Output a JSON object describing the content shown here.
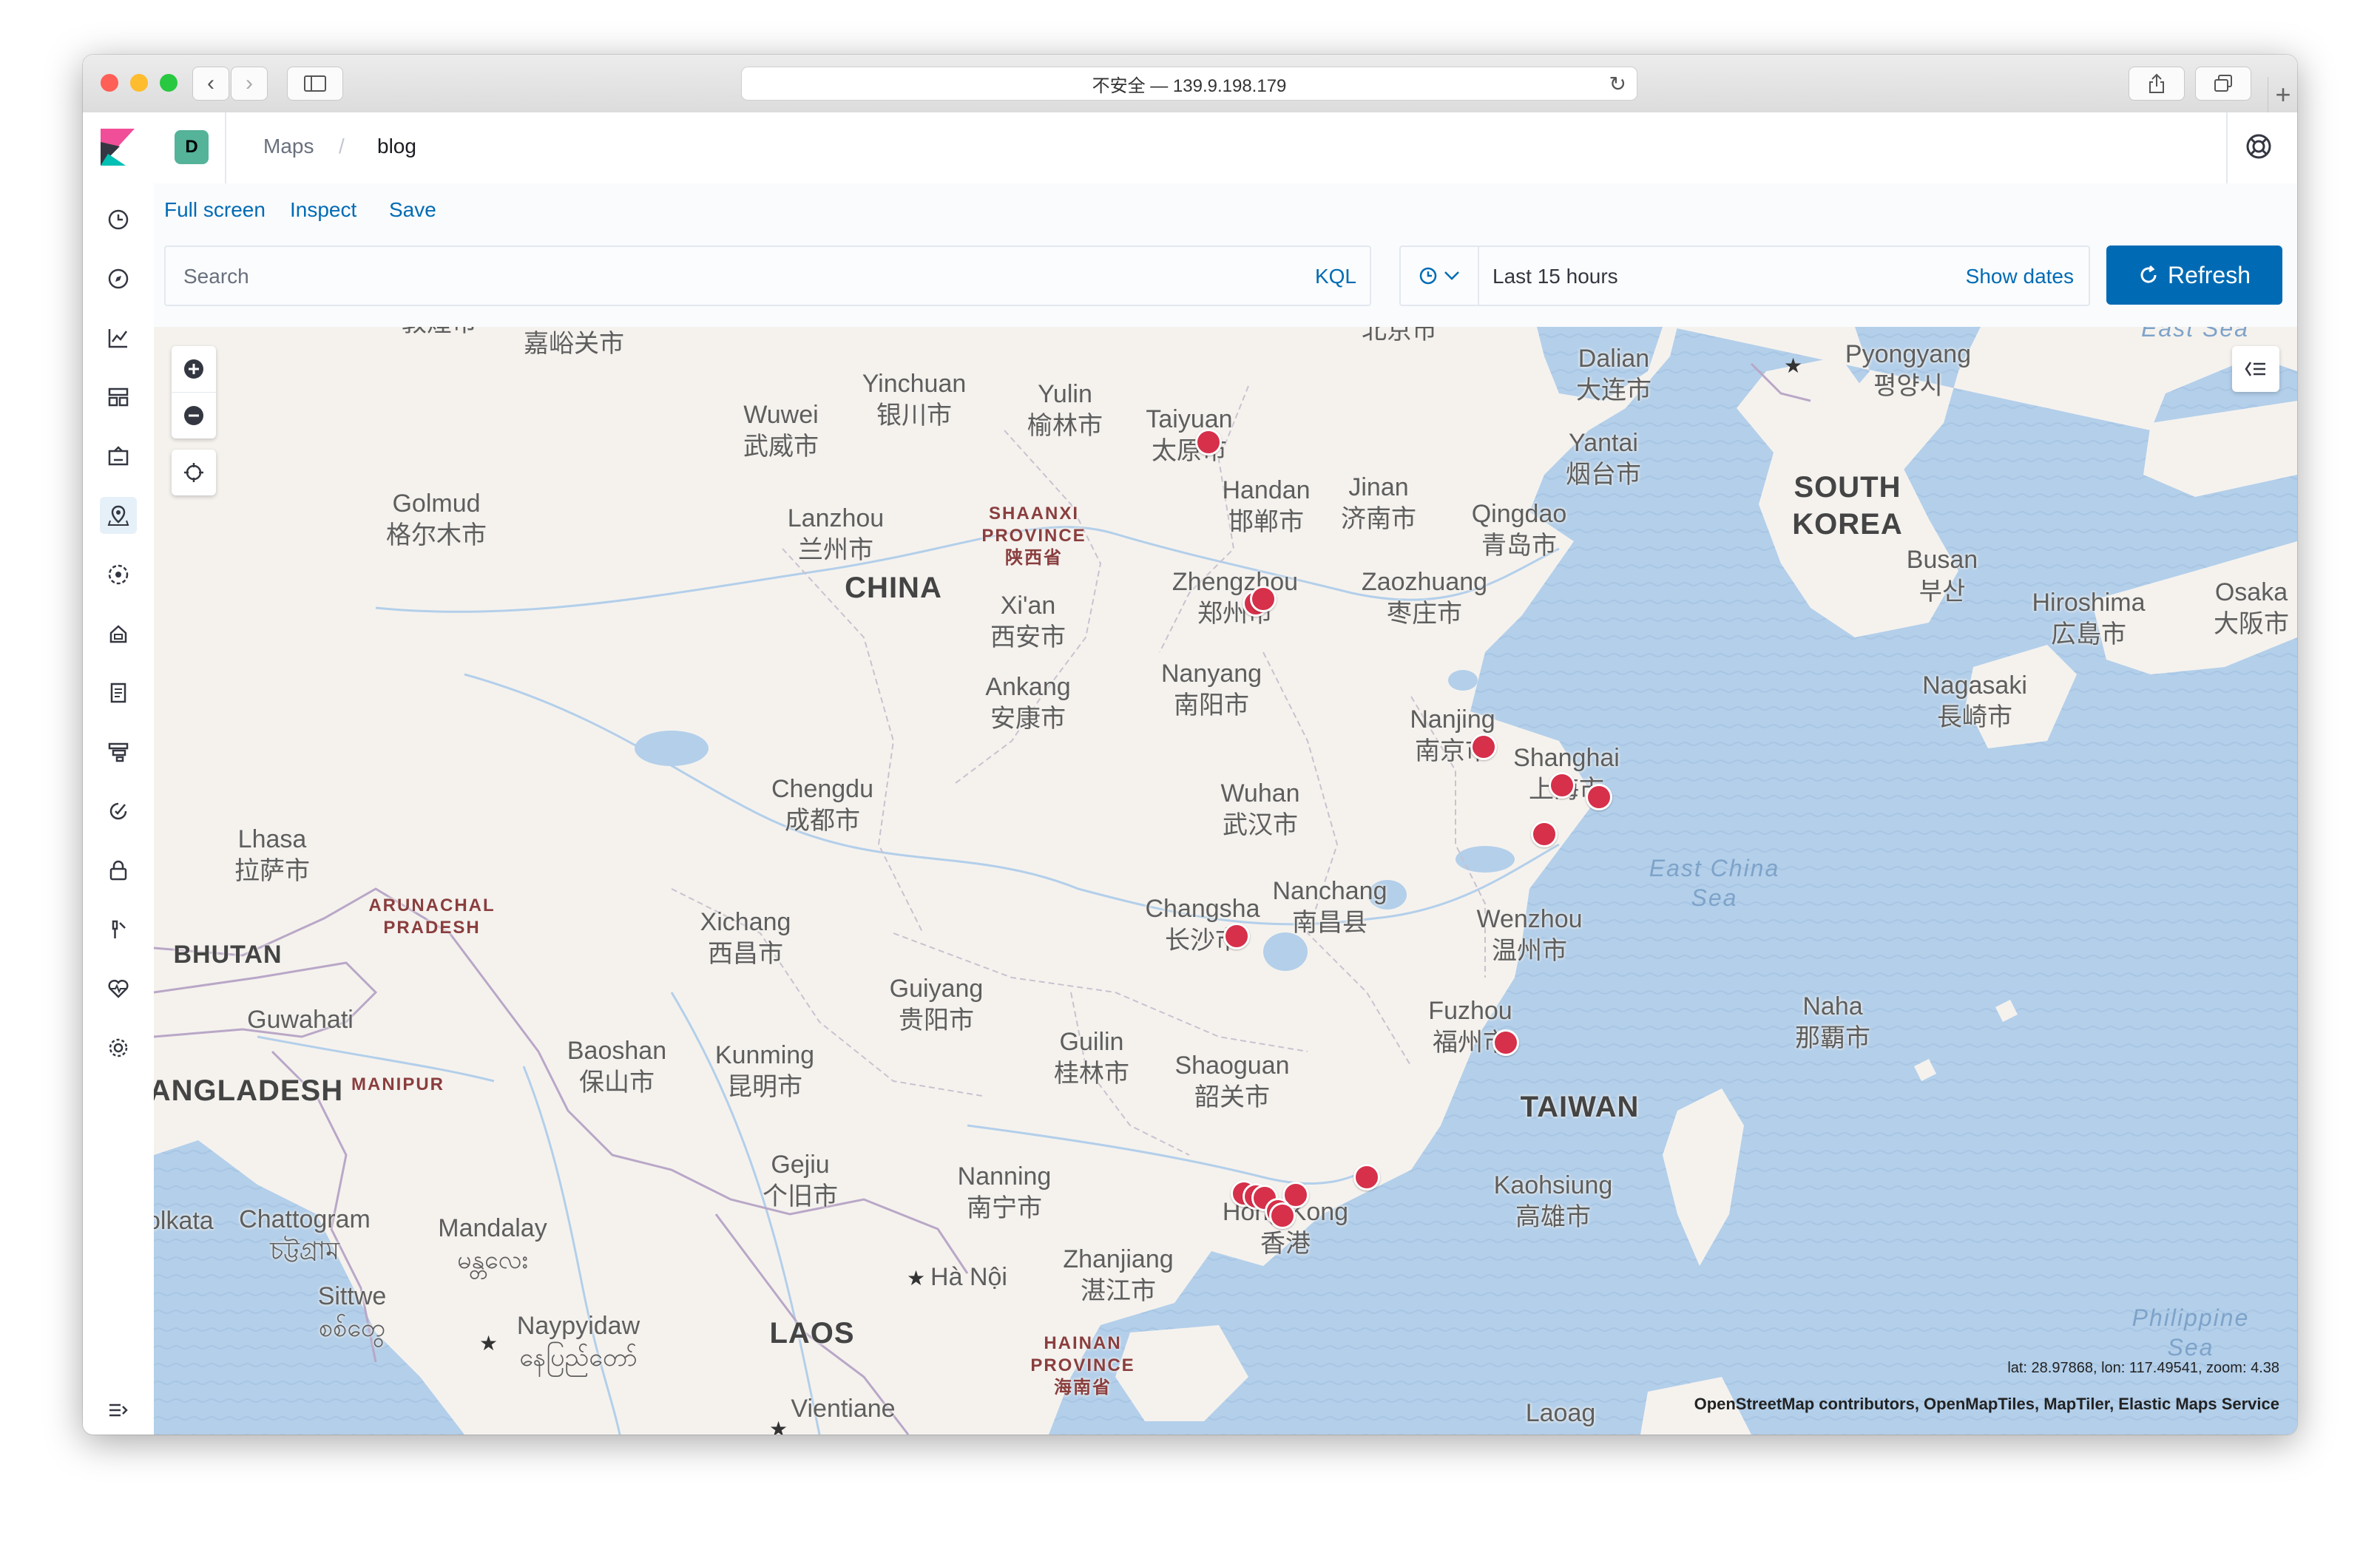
{
  "browser": {
    "address": "不安全 — 139.9.198.179"
  },
  "header": {
    "space_initial": "D",
    "breadcrumbs": [
      "Maps",
      "blog"
    ]
  },
  "toolbar": {
    "full_screen": "Full screen",
    "inspect": "Inspect",
    "save": "Save"
  },
  "search": {
    "placeholder": "Search",
    "language": "KQL"
  },
  "time": {
    "range": "Last 15 hours",
    "show_dates": "Show dates",
    "refresh": "Refresh"
  },
  "sidenav": {
    "icons": [
      "clock-icon",
      "discover-icon",
      "visualize-icon",
      "dashboard-icon",
      "canvas-icon",
      "maps-icon",
      "ml-icon",
      "infrastructure-icon",
      "logs-icon",
      "apm-icon",
      "uptime-icon",
      "dev-tools-icon",
      "stack-monitoring-icon",
      "heartbeat-icon",
      "management-icon",
      "collapse-nav-icon"
    ]
  },
  "map": {
    "labels": [
      {
        "text": "敦煌市",
        "type": "city"
      },
      {
        "text": "嘉峪关市",
        "type": "city"
      },
      {
        "text": "Yinchuan\n银川市",
        "type": "city"
      },
      {
        "text": "Yulin\n榆林市",
        "type": "city"
      },
      {
        "text": "Taiyuan\n太原市",
        "type": "city"
      },
      {
        "text": "北京市",
        "type": "city"
      },
      {
        "text": "Dalian\n大连市",
        "type": "city"
      },
      {
        "text": "Pyongyang\n평양시",
        "type": "city"
      },
      {
        "text": "Wuwei\n武威市",
        "type": "city"
      },
      {
        "text": "Golmud\n格尔木市",
        "type": "city"
      },
      {
        "text": "Lanzhou\n兰州市",
        "type": "city"
      },
      {
        "text": "SHAANXI\nPROVINCE\n陕西省",
        "type": "province"
      },
      {
        "text": "Handan\n邯郸市",
        "type": "city"
      },
      {
        "text": "Jinan\n济南市",
        "type": "city"
      },
      {
        "text": "Yantai\n烟台市",
        "type": "city"
      },
      {
        "text": "Qingdao\n青岛市",
        "type": "city"
      },
      {
        "text": "SOUTH\nKOREA",
        "type": "country"
      },
      {
        "text": "CHINA",
        "type": "country"
      },
      {
        "text": "Zhengzhou\n郑州市",
        "type": "city"
      },
      {
        "text": "Zaozhuang\n枣庄市",
        "type": "city"
      },
      {
        "text": "Busan\n부산",
        "type": "city"
      },
      {
        "text": "Hiroshima\n広島市",
        "type": "city"
      },
      {
        "text": "Osaka\n大阪市",
        "type": "city"
      },
      {
        "text": "Xi'an\n西安市",
        "type": "city"
      },
      {
        "text": "Ankang\n安康市",
        "type": "city"
      },
      {
        "text": "Nanyang\n南阳市",
        "type": "city"
      },
      {
        "text": "Nagasaki\n長崎市",
        "type": "city"
      },
      {
        "text": "Nanjing\n南京市",
        "type": "city"
      },
      {
        "text": "Shanghai\n上海市",
        "type": "city"
      },
      {
        "text": "Chengdu\n成都市",
        "type": "city"
      },
      {
        "text": "Wuhan\n武汉市",
        "type": "city"
      },
      {
        "text": "Lhasa\n拉萨市",
        "type": "city"
      },
      {
        "text": "East China\nSea",
        "type": "sea"
      },
      {
        "text": "Nanchang\n南昌县",
        "type": "city"
      },
      {
        "text": "ARUNACHAL\nPRADESH",
        "type": "province"
      },
      {
        "text": "Xichang\n西昌市",
        "type": "city"
      },
      {
        "text": "Changsha\n长沙市",
        "type": "city"
      },
      {
        "text": "Wenzhou\n温州市",
        "type": "city"
      },
      {
        "text": "BHUTAN",
        "type": "country"
      },
      {
        "text": "Guiyang\n贵阳市",
        "type": "city"
      },
      {
        "text": "Naha\n那覇市",
        "type": "city"
      },
      {
        "text": "Fuzhou\n福州市",
        "type": "city"
      },
      {
        "text": "Guwahati",
        "type": "city"
      },
      {
        "text": "Baoshan\n保山市",
        "type": "city"
      },
      {
        "text": "Kunming\n昆明市",
        "type": "city"
      },
      {
        "text": "Guilin\n桂林市",
        "type": "city"
      },
      {
        "text": "Shaoguan\n韶关市",
        "type": "city"
      },
      {
        "text": "BANGLADESH",
        "type": "country"
      },
      {
        "text": "MANIPUR",
        "type": "province"
      },
      {
        "text": "TAIWAN",
        "type": "country"
      },
      {
        "text": "Gejiu\n个旧市",
        "type": "city"
      },
      {
        "text": "Nanning\n南宁市",
        "type": "city"
      },
      {
        "text": "Hong Kong\n香港",
        "type": "city"
      },
      {
        "text": "Kaohsiung\n高雄市",
        "type": "city"
      },
      {
        "text": "Kolkata",
        "type": "city"
      },
      {
        "text": "Chattogram\nচট্টগ্রাম",
        "type": "city"
      },
      {
        "text": "Mandalay\nမန္တလေး",
        "type": "city"
      },
      {
        "text": "Zhanjiang\n湛江市",
        "type": "city"
      },
      {
        "text": "Hà Nội",
        "type": "city"
      },
      {
        "text": "Sittwe\nစစ်တွေ",
        "type": "city"
      },
      {
        "text": "Naypyidaw\nနေပြည်တော်",
        "type": "city"
      },
      {
        "text": "LAOS",
        "type": "country"
      },
      {
        "text": "HAINAN\nPROVINCE\n海南省",
        "type": "province"
      },
      {
        "text": "Philippine\nSea",
        "type": "sea"
      },
      {
        "text": "Vientiane",
        "type": "city"
      },
      {
        "text": "Laoag",
        "type": "city"
      },
      {
        "text": "East Sea",
        "type": "sea"
      }
    ],
    "points_count": 16,
    "marker_color": "#d6304a",
    "coordinates": "lat: 28.97868, lon: 117.49541, zoom: 4.38",
    "attribution": "OpenStreetMap contributors, OpenMapTiles, MapTiler, Elastic Maps Service"
  }
}
